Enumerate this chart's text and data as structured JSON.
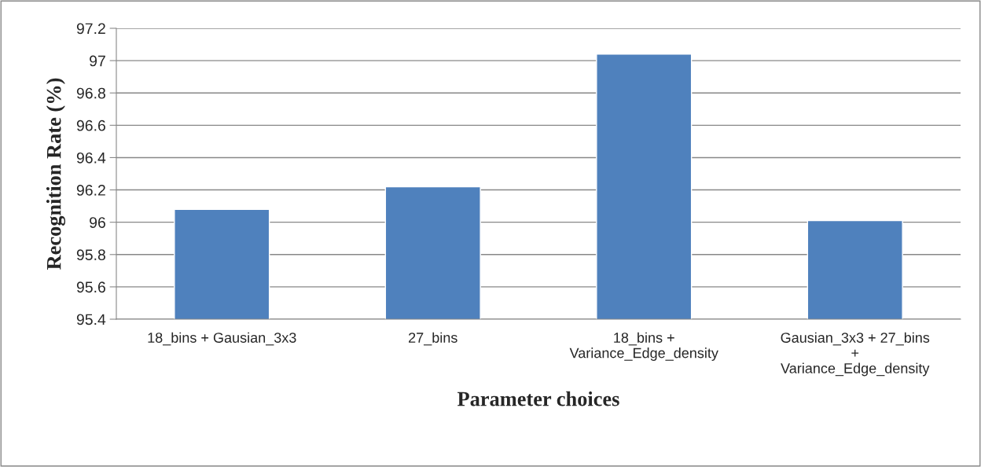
{
  "chart_data": {
    "type": "bar",
    "categories": [
      "18_bins + Gausian_3x3",
      "27_bins",
      "18_bins +\nVariance_Edge_density",
      "Gausian_3x3 + 27_bins\n+\nVariance_Edge_density"
    ],
    "values": [
      96.08,
      96.22,
      97.04,
      96.01
    ],
    "color": "#4f81bd",
    "xlabel": "Parameter choices",
    "ylabel": "Recognition Rate (%)",
    "ylim": [
      95.4,
      97.2
    ],
    "yticks": [
      {
        "value": 95.4,
        "label": "95.4"
      },
      {
        "value": 95.6,
        "label": "95.6"
      },
      {
        "value": 95.8,
        "label": "95.8"
      },
      {
        "value": 96,
        "label": "96"
      },
      {
        "value": 96.2,
        "label": "96.2"
      },
      {
        "value": 96.4,
        "label": "96.4"
      },
      {
        "value": 96.6,
        "label": "96.6"
      },
      {
        "value": 96.8,
        "label": "96.8"
      },
      {
        "value": 97,
        "label": "97"
      },
      {
        "value": 97.2,
        "label": "97.2"
      }
    ],
    "grid": "y"
  }
}
